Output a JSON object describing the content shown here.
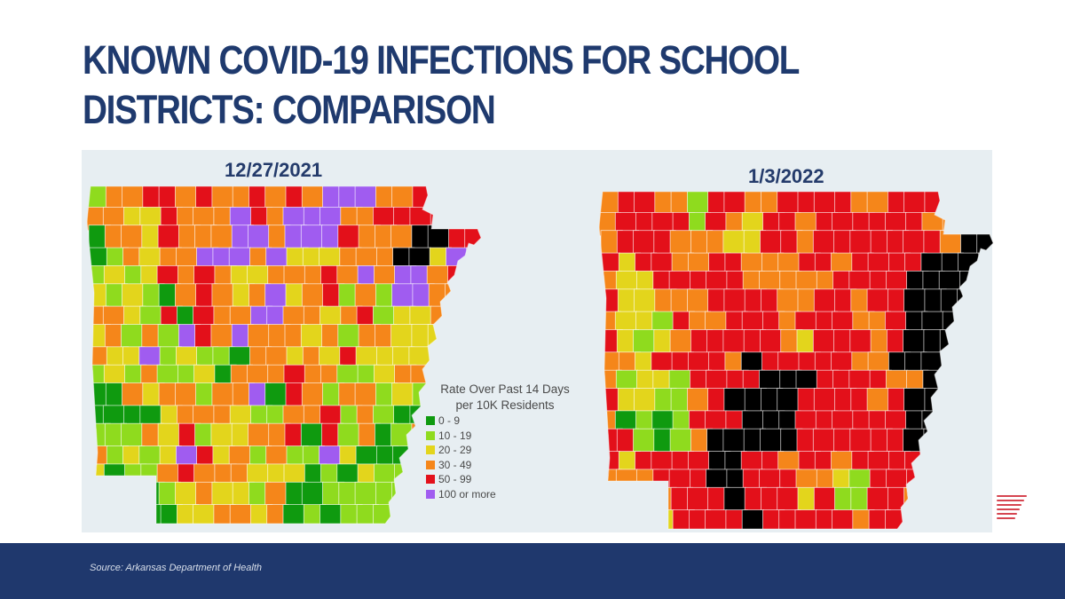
{
  "slide": {
    "title_line1": "KNOWN COVID-19 INFECTIONS FOR SCHOOL",
    "title_line2": "DISTRICTS: COMPARISON",
    "source": "Source: Arkansas Department of Health",
    "colors": {
      "title": "#1f3a6e",
      "footer": "#1f386d",
      "panel": "#e7eef2",
      "logo": "#d64550"
    }
  },
  "legend": {
    "title_line1": "Rate Over Past 14 Days",
    "title_line2": "per 10K Residents",
    "items": [
      {
        "label": "0 - 9",
        "color": "#0f9a0f"
      },
      {
        "label": "10 - 19",
        "color": "#8fdb1e"
      },
      {
        "label": "20 - 29",
        "color": "#e3d51c"
      },
      {
        "label": "30 - 49",
        "color": "#f5861a"
      },
      {
        "label": "50 - 99",
        "color": "#e3101a"
      },
      {
        "label": "100 or more",
        "color": "#a05cf0"
      }
    ]
  },
  "maps": [
    {
      "date": "12/27/2021",
      "description": "Arkansas school districts colored by COVID-19 rate; mostly orange (30-49), yellow (20-29) and light green (10-19), with scattered red (50-99) and a few dark green (0-9) districts; one purple (100+) cluster in the northeast.",
      "grid": [
        "1334434334343555334444",
        "3322433354355533444414",
        "0332433355355543336644",
        "0132335553522233366255",
        "1212434322333435355344",
        "2121034323523413155334",
        "3321404335533234122335",
        "2313154353332313322254",
        "3225121103323242222353",
        "1213112033343311233333",
        "0032331335043133121130",
        "0000233321133413100003",
        "1113241223340413013333",
        "3121254231311520001311",
        "2011343332220102111111",
        "1220123221300111111111",
        "1000022332301011111111"
      ]
    },
    {
      "date": "1/3/2022",
      "description": "Arkansas school districts colored by COVID-19 rate; predominantly red (50-99) and purple (100+), with large purple regions in the east and central areas, orange and yellow in the west, and very little green.",
      "grid": [
        "3443314433444433444433",
        "3444414324434444443343",
        "3444333224434444444366",
        "4244334433344344446666",
        "3224444433333444466666",
        "4223334444334434466666",
        "3221433444344433466666",
        "4212344444324443466666",
        "3324444364444433666666",
        "3122144446664444336666",
        "4221134666644443466666",
        "3010144466644444466666",
        "4410136666644444466666",
        "4244446644344344444466",
        "3334446644433214444446",
        "3333444644424114434444",
        "3222444464444434444444"
      ]
    }
  ]
}
